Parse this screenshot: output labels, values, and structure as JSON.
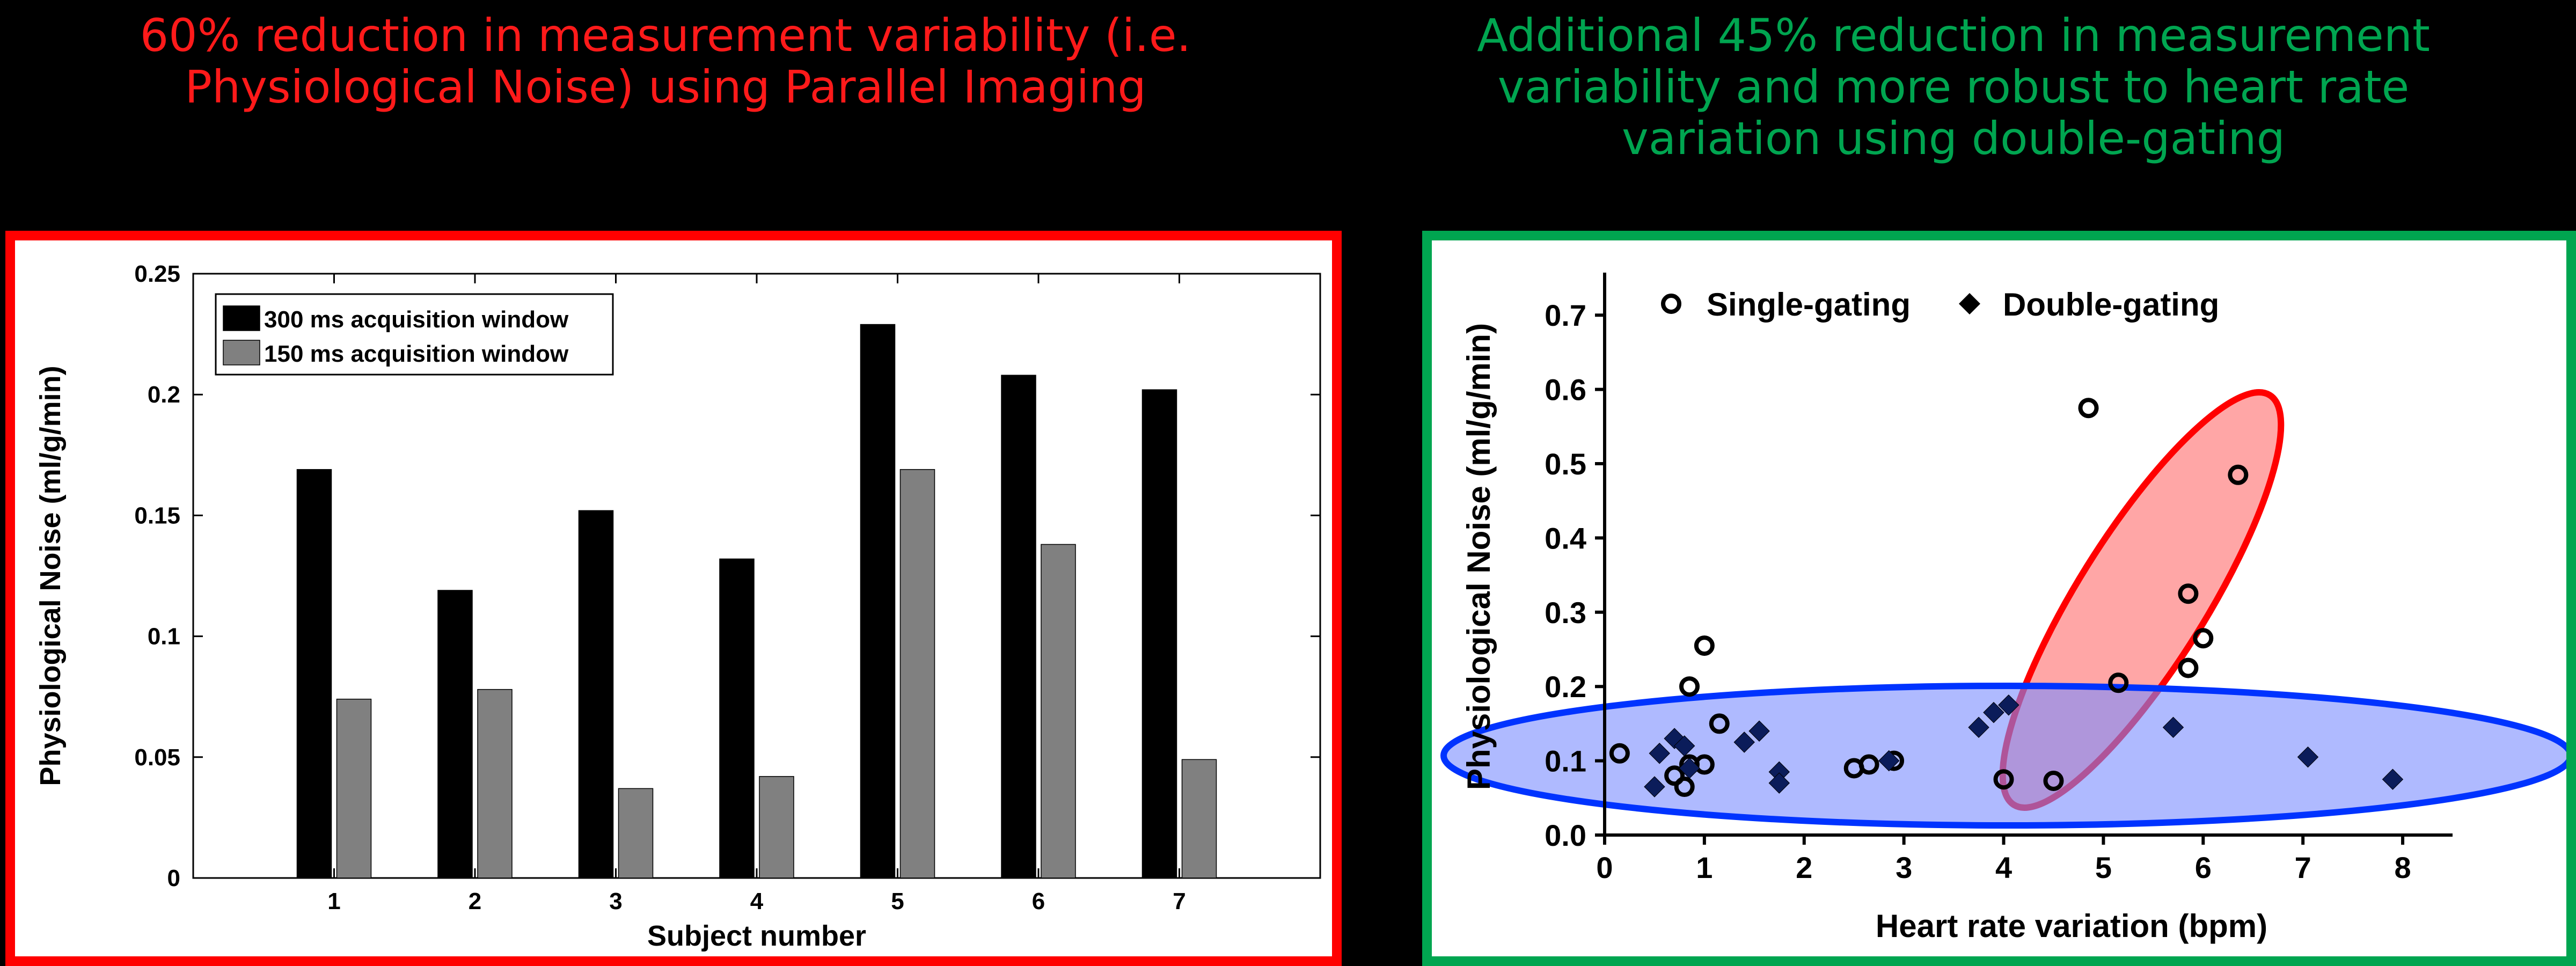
{
  "headlines": {
    "left": [
      "60% reduction in measurement variability (i.e.",
      "Physiological Noise) using Parallel Imaging"
    ],
    "left_color": "#ff1a1a",
    "right": [
      "Additional 45% reduction in measurement",
      "variability and more robust to heart rate",
      "variation using double-gating"
    ],
    "right_color": "#00a550"
  },
  "frame_colors": {
    "left": "#ff0000",
    "right": "#00a550"
  },
  "chart_data": [
    {
      "type": "bar",
      "xlabel": "Subject number",
      "ylabel": "Physiological Noise (ml/g/min)",
      "categories": [
        "1",
        "2",
        "3",
        "4",
        "5",
        "6",
        "7"
      ],
      "series": [
        {
          "name": "300 ms acquisition window",
          "color": "#000000",
          "values": [
            0.169,
            0.119,
            0.152,
            0.132,
            0.229,
            0.208,
            0.202
          ]
        },
        {
          "name": "150 ms acquisition window",
          "color": "#808080",
          "values": [
            0.074,
            0.078,
            0.037,
            0.042,
            0.169,
            0.138,
            0.049
          ]
        }
      ],
      "ylim": [
        0,
        0.25
      ],
      "yticks": [
        "0",
        "0.05",
        "0.1",
        "0.15",
        "0.2",
        "0.25"
      ],
      "grid": false,
      "legend": "top-left"
    },
    {
      "type": "scatter",
      "xlabel": "Heart rate variation (bpm)",
      "ylabel": "Physiological Noise (ml/g/min)",
      "xlim": [
        0,
        8.5
      ],
      "ylim": [
        0,
        0.75
      ],
      "xticks": [
        "0",
        "1",
        "2",
        "3",
        "4",
        "5",
        "6",
        "7",
        "8"
      ],
      "yticks": [
        "0.0",
        "0.1",
        "0.2",
        "0.3",
        "0.4",
        "0.5",
        "0.6",
        "0.7"
      ],
      "grid": false,
      "legend": "top",
      "series": [
        {
          "name": "Single-gating",
          "marker": "open-circle",
          "points": [
            [
              0.15,
              0.11
            ],
            [
              0.7,
              0.08
            ],
            [
              0.8,
              0.065
            ],
            [
              0.85,
              0.095
            ],
            [
              0.85,
              0.2
            ],
            [
              1.0,
              0.255
            ],
            [
              1.0,
              0.095
            ],
            [
              1.15,
              0.15
            ],
            [
              2.5,
              0.09
            ],
            [
              2.65,
              0.095
            ],
            [
              2.9,
              0.1
            ],
            [
              4.0,
              0.075
            ],
            [
              4.5,
              0.073
            ],
            [
              4.85,
              0.575
            ],
            [
              5.15,
              0.205
            ],
            [
              5.85,
              0.225
            ],
            [
              5.85,
              0.325
            ],
            [
              6.0,
              0.265
            ],
            [
              6.35,
              0.485
            ]
          ]
        },
        {
          "name": "Double-gating",
          "marker": "diamond",
          "points": [
            [
              0.5,
              0.065
            ],
            [
              0.55,
              0.11
            ],
            [
              0.7,
              0.13
            ],
            [
              0.8,
              0.12
            ],
            [
              0.85,
              0.09
            ],
            [
              1.4,
              0.125
            ],
            [
              1.55,
              0.14
            ],
            [
              1.75,
              0.085
            ],
            [
              1.75,
              0.07
            ],
            [
              2.85,
              0.1
            ],
            [
              3.75,
              0.145
            ],
            [
              3.9,
              0.165
            ],
            [
              4.05,
              0.175
            ],
            [
              5.7,
              0.145
            ],
            [
              7.05,
              0.105
            ],
            [
              7.9,
              0.075
            ]
          ]
        }
      ],
      "annotations": [
        {
          "shape": "ellipse",
          "color": "#ff0000",
          "fill": "#ff6b6b"
        },
        {
          "shape": "ellipse",
          "color": "#0033ff",
          "fill": "#7a8cff"
        }
      ]
    }
  ]
}
